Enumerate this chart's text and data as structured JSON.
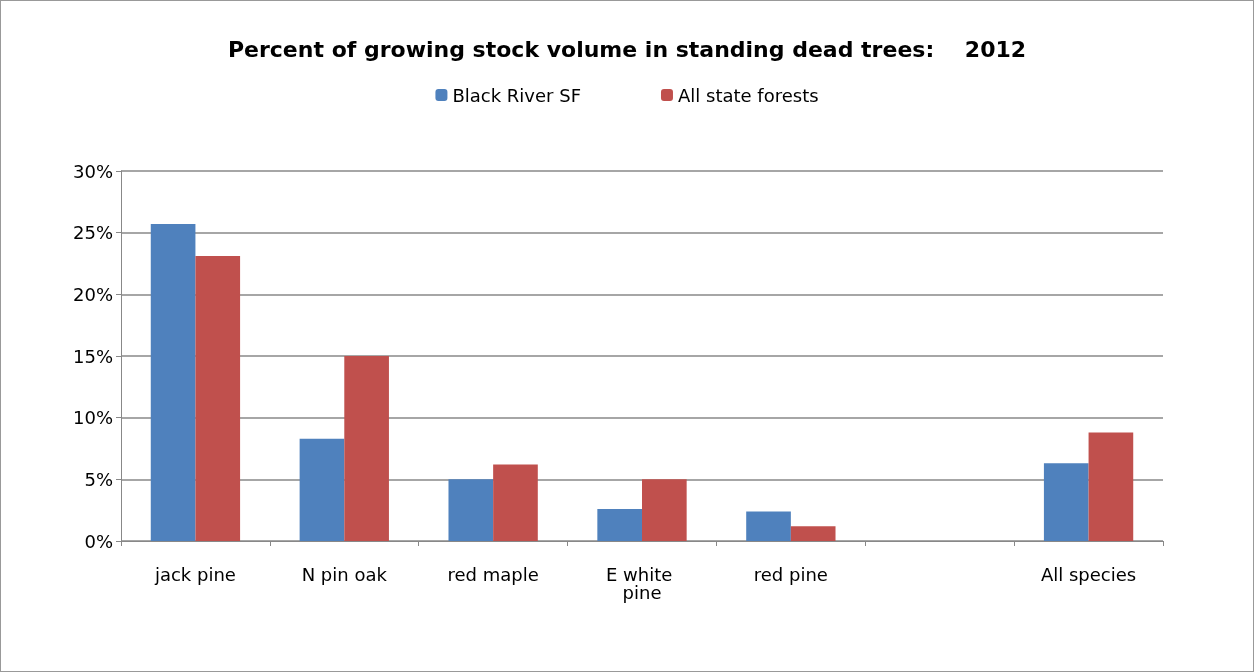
{
  "chart_data": {
    "type": "bar",
    "title": "Percent of growing stock volume in standing dead trees:    2012",
    "categories": [
      "jack pine",
      "N pin oak",
      "red maple",
      "E white pine",
      "red pine",
      null,
      "All species"
    ],
    "series": [
      {
        "name": "Black River SF",
        "color": "#4f81bd",
        "values": [
          25.7,
          8.3,
          5.0,
          2.6,
          2.4,
          null,
          6.3
        ]
      },
      {
        "name": "All state forests",
        "color": "#c0504d",
        "values": [
          23.1,
          15.0,
          6.2,
          5.0,
          1.2,
          null,
          8.8
        ]
      }
    ],
    "ylim": [
      0,
      30
    ],
    "yticks": [
      {
        "value": 0,
        "label": "0%"
      },
      {
        "value": 5,
        "label": "5%"
      },
      {
        "value": 10,
        "label": "10%"
      },
      {
        "value": 15,
        "label": "15%"
      },
      {
        "value": 20,
        "label": "20%"
      },
      {
        "value": 25,
        "label": "25%"
      },
      {
        "value": 30,
        "label": "30%"
      }
    ],
    "grid": "y",
    "legend": "top"
  }
}
